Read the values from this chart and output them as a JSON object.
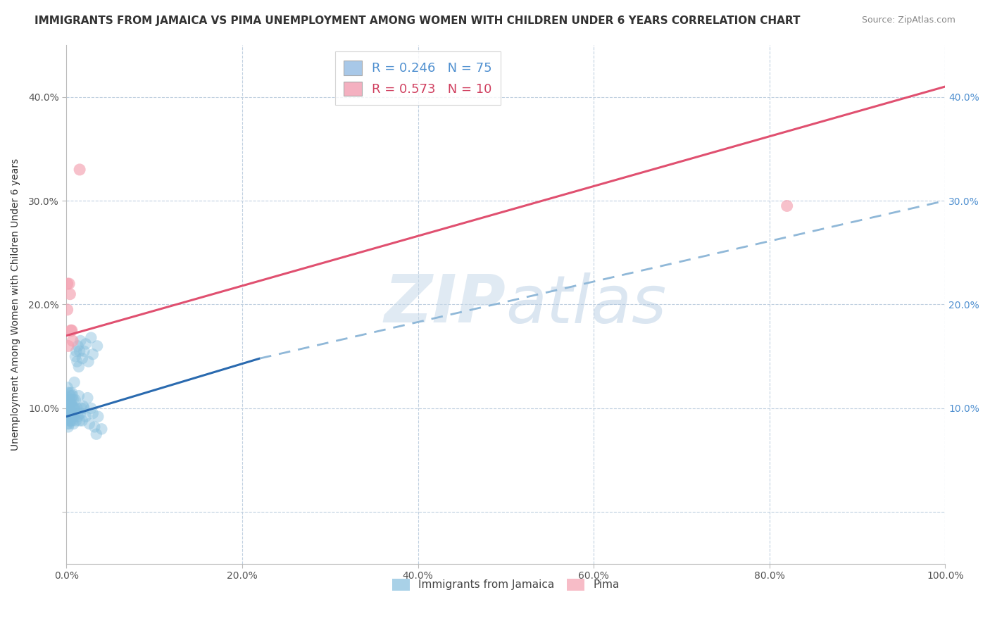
{
  "title": "IMMIGRANTS FROM JAMAICA VS PIMA UNEMPLOYMENT AMONG WOMEN WITH CHILDREN UNDER 6 YEARS CORRELATION CHART",
  "source": "Source: ZipAtlas.com",
  "ylabel": "Unemployment Among Women with Children Under 6 years",
  "xlabel_ticks": [
    "0.0%",
    "20.0%",
    "40.0%",
    "60.0%",
    "80.0%",
    "100.0%"
  ],
  "ylabel_left_ticks": [
    "",
    "10.0%",
    "20.0%",
    "30.0%",
    "40.0%"
  ],
  "ylabel_right_ticks": [
    "",
    "10.0%",
    "20.0%",
    "30.0%",
    "40.0%"
  ],
  "xlim": [
    0.0,
    1.0
  ],
  "ylim": [
    -0.05,
    0.45
  ],
  "legend1_label": "R = 0.246   N = 75",
  "legend2_label": "R = 0.573   N = 10",
  "legend1_color": "#a8c8e8",
  "legend2_color": "#f4b0c0",
  "blue_scatter_color": "#85BEDD",
  "pink_scatter_color": "#F4A0B0",
  "blue_line_color": "#2a6aaf",
  "pink_line_color": "#e05070",
  "dashed_line_color": "#90b8d8",
  "watermark_zip": "ZIP",
  "watermark_atlas": "atlas",
  "background_color": "#ffffff",
  "grid_color": "#c0d0e0",
  "title_fontsize": 11,
  "axis_fontsize": 10,
  "tick_fontsize": 10,
  "right_tick_color": "#5090d0",
  "blue_points_x": [
    0.001,
    0.001,
    0.001,
    0.001,
    0.001,
    0.002,
    0.002,
    0.002,
    0.002,
    0.003,
    0.003,
    0.003,
    0.003,
    0.004,
    0.004,
    0.004,
    0.005,
    0.005,
    0.005,
    0.006,
    0.006,
    0.006,
    0.007,
    0.007,
    0.008,
    0.008,
    0.008,
    0.009,
    0.009,
    0.01,
    0.01,
    0.011,
    0.012,
    0.013,
    0.014,
    0.015,
    0.016,
    0.017,
    0.018,
    0.019,
    0.02,
    0.022,
    0.024,
    0.026,
    0.028,
    0.03,
    0.032,
    0.034,
    0.036,
    0.04,
    0.001,
    0.002,
    0.003,
    0.004,
    0.004,
    0.005,
    0.005,
    0.006,
    0.007,
    0.008,
    0.009,
    0.01,
    0.011,
    0.012,
    0.013,
    0.014,
    0.015,
    0.016,
    0.018,
    0.02,
    0.022,
    0.025,
    0.028,
    0.03,
    0.035
  ],
  "blue_points_y": [
    0.095,
    0.09,
    0.105,
    0.085,
    0.1,
    0.095,
    0.088,
    0.11,
    0.082,
    0.1,
    0.092,
    0.108,
    0.085,
    0.098,
    0.112,
    0.088,
    0.095,
    0.105,
    0.088,
    0.1,
    0.092,
    0.115,
    0.088,
    0.102,
    0.095,
    0.108,
    0.085,
    0.092,
    0.1,
    0.095,
    0.108,
    0.088,
    0.1,
    0.092,
    0.112,
    0.088,
    0.095,
    0.1,
    0.088,
    0.102,
    0.1,
    0.092,
    0.11,
    0.085,
    0.1,
    0.095,
    0.082,
    0.075,
    0.092,
    0.08,
    0.12,
    0.115,
    0.108,
    0.1,
    0.115,
    0.105,
    0.095,
    0.108,
    0.112,
    0.1,
    0.125,
    0.15,
    0.155,
    0.145,
    0.16,
    0.14,
    0.155,
    0.165,
    0.148,
    0.155,
    0.162,
    0.145,
    0.168,
    0.152,
    0.16
  ],
  "pink_points_x": [
    0.001,
    0.001,
    0.002,
    0.003,
    0.004,
    0.005,
    0.006,
    0.007,
    0.82,
    0.015
  ],
  "pink_points_y": [
    0.22,
    0.195,
    0.16,
    0.22,
    0.21,
    0.175,
    0.175,
    0.165,
    0.295,
    0.33
  ],
  "blue_line_x": [
    0.0,
    0.22
  ],
  "blue_line_y": [
    0.092,
    0.148
  ],
  "dashed_line_x": [
    0.22,
    1.0
  ],
  "dashed_line_y": [
    0.148,
    0.3
  ],
  "pink_line_x": [
    0.0,
    1.0
  ],
  "pink_line_y": [
    0.17,
    0.41
  ]
}
